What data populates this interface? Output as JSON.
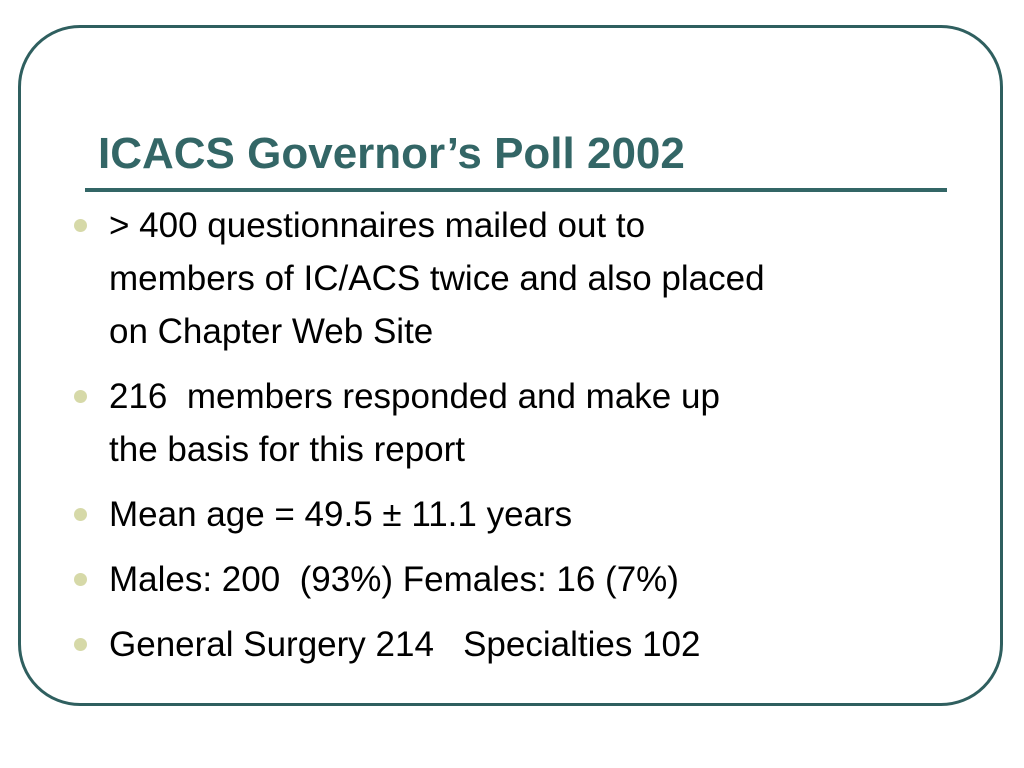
{
  "slide": {
    "title": "ICACS Governor’s Poll 2002",
    "bullets": [
      {
        "text": "> 400 questionnaires mailed out to\nmembers of IC/ACS twice and also placed\non Chapter Web Site"
      },
      {
        "text": "216  members responded and make up\nthe basis for this report"
      },
      {
        "text": "Mean age = 49.5 ± 11.1 years"
      },
      {
        "text": "Males: 200  (93%) Females: 16 (7%)"
      },
      {
        "text": "General Surgery 214   Specialties 102"
      }
    ]
  },
  "colors": {
    "frame_border": "#2f5f5f",
    "title": "#336666",
    "bullet_marker": "#d6d9a8",
    "body_text": "#000000"
  }
}
